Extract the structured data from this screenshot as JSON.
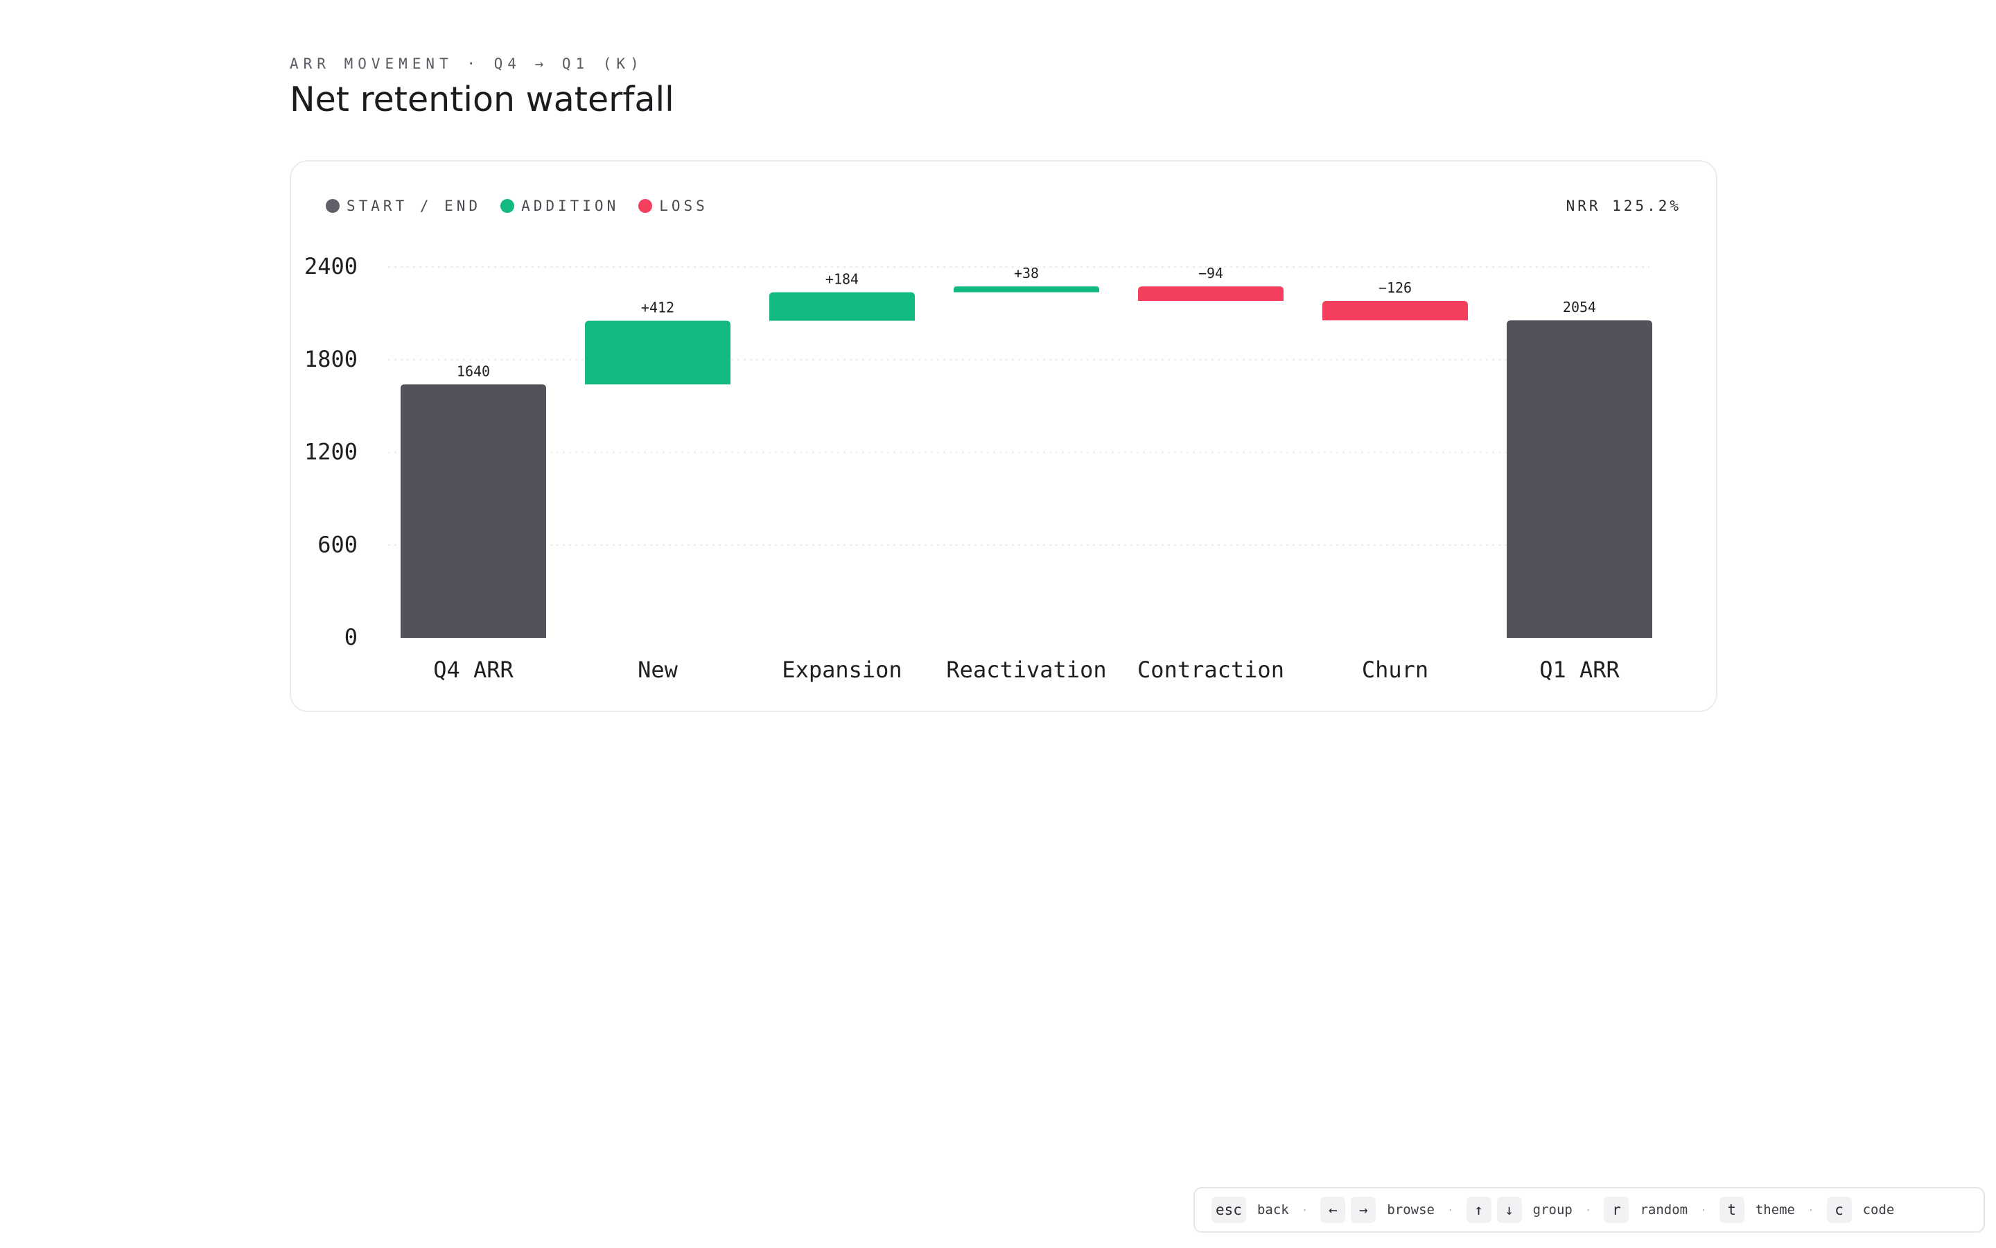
{
  "header": {
    "eyebrow": "ARR MOVEMENT · Q4 → Q1 (K)",
    "title": "Net retention waterfall"
  },
  "legend": {
    "items": [
      {
        "label": "START / END",
        "color": "#606066"
      },
      {
        "label": "ADDITION",
        "color": "#12b981"
      },
      {
        "label": "LOSS",
        "color": "#f43f5e"
      }
    ]
  },
  "nrr_label": "NRR 125.2%",
  "colors": {
    "total": "#52525b",
    "addition": "#12b981",
    "loss": "#f43f5e",
    "grid": "#ececef"
  },
  "chart_data": {
    "type": "bar",
    "subtype": "waterfall",
    "categories": [
      "Q4 ARR",
      "New",
      "Expansion",
      "Reactivation",
      "Contraction",
      "Churn",
      "Q1 ARR"
    ],
    "values": [
      1640,
      412,
      184,
      38,
      -94,
      -126,
      2054
    ],
    "kinds": [
      "total",
      "addition",
      "addition",
      "addition",
      "loss",
      "loss",
      "total"
    ],
    "data_labels": [
      "1640",
      "+412",
      "+184",
      "+38",
      "−94",
      "−126",
      "2054"
    ],
    "y_ticks": [
      "0",
      "600",
      "1200",
      "1800",
      "2400"
    ],
    "ylim": [
      0,
      2400
    ],
    "grid": true,
    "legend_position": "top-left"
  },
  "shortcuts": [
    {
      "keys": [
        "esc"
      ],
      "label": "back"
    },
    {
      "keys": [
        "←",
        "→"
      ],
      "label": "browse"
    },
    {
      "keys": [
        "↑",
        "↓"
      ],
      "label": "group"
    },
    {
      "keys": [
        "r"
      ],
      "label": "random"
    },
    {
      "keys": [
        "t"
      ],
      "label": "theme"
    },
    {
      "keys": [
        "c"
      ],
      "label": "code"
    }
  ]
}
